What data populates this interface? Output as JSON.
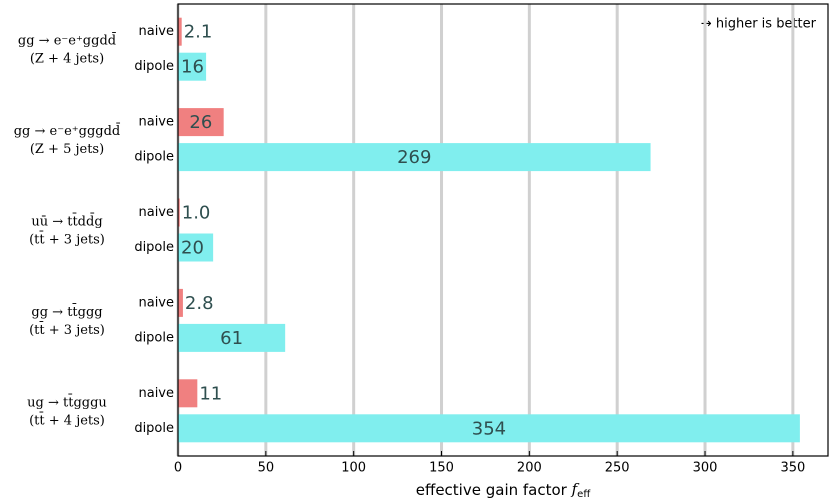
{
  "chart_data": {
    "type": "barh",
    "annotation": "→ higher is better",
    "xlabel": {
      "text": "effective gain factor",
      "symbol": "f",
      "subscript": "eff"
    },
    "categories": [
      [
        "gg → e⁻e⁺ggdd̄",
        "(Z + 4 jets)"
      ],
      [
        "gg → e⁻e⁺gggdd̄",
        "(Z + 5 jets)"
      ],
      [
        "uū → tt̄dd̄g",
        "(tt̄ + 3 jets)"
      ],
      [
        "gg → tt̄ggg",
        "(tt̄ + 3 jets)"
      ],
      [
        "ug → tt̄gggu",
        "(tt̄ + 4 jets)"
      ]
    ],
    "series": [
      {
        "name": "naive",
        "color": "#f08080",
        "values": [
          2.1,
          26,
          1.0,
          2.8,
          11
        ],
        "value_labels": [
          "2.1",
          "26",
          "1.0",
          "2.8",
          "11"
        ]
      },
      {
        "name": "dipole",
        "color": "#80eeee",
        "values": [
          16,
          269,
          20,
          61,
          354
        ]
      }
    ],
    "xlim": [
      0,
      370
    ],
    "xticks": [
      0,
      50,
      100,
      150,
      200,
      250,
      300,
      350
    ],
    "grid": true
  }
}
